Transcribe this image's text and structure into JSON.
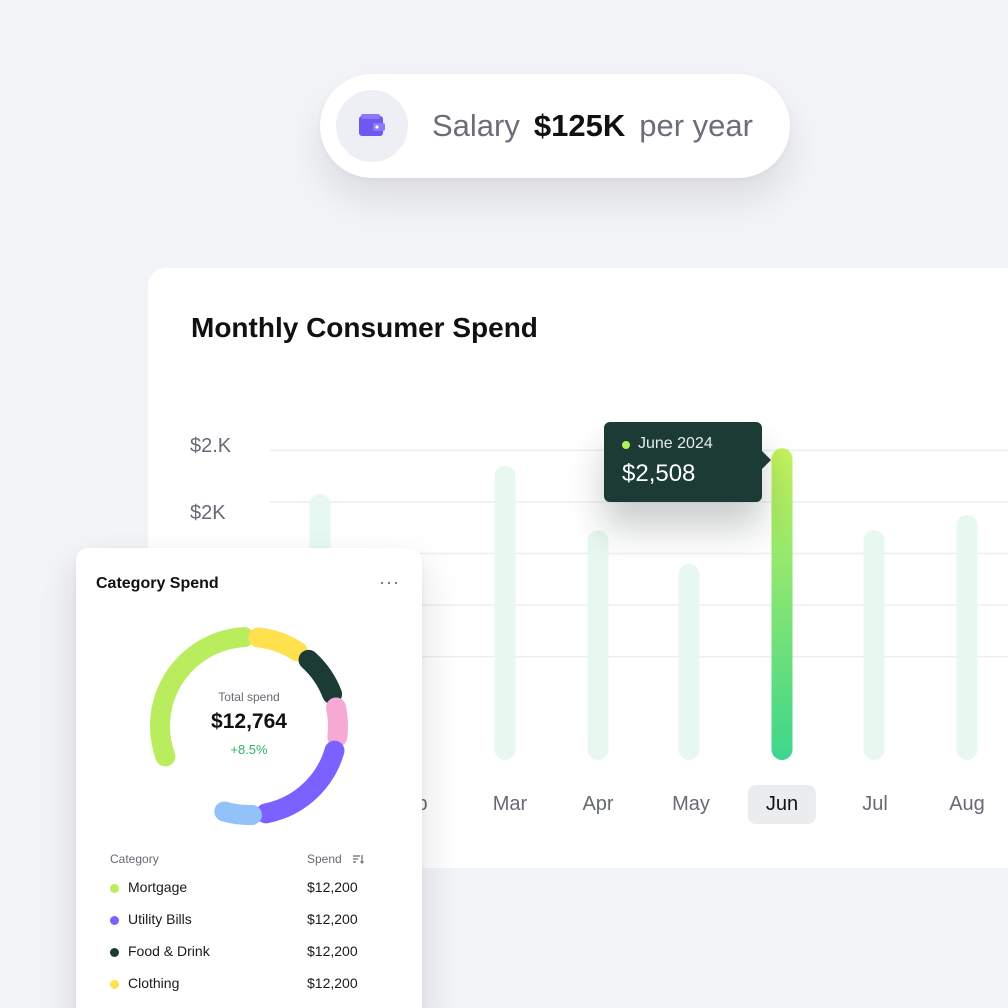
{
  "salary": {
    "label": "Salary",
    "amount": "$125K",
    "suffix": "per year",
    "icon": "wallet-icon",
    "accent": "#7b61ff"
  },
  "chart_card": {
    "title": "Monthly Consumer Spend",
    "y_ticks": [
      "$2.K",
      "$2K"
    ],
    "months": [
      {
        "label": "Feb",
        "visible_text": "b"
      },
      {
        "label": "Mar",
        "visible_text": "Mar"
      },
      {
        "label": "Apr",
        "visible_text": "Apr"
      },
      {
        "label": "May",
        "visible_text": "May"
      },
      {
        "label": "Jun",
        "visible_text": "Jun"
      },
      {
        "label": "Jul",
        "visible_text": "Jul"
      },
      {
        "label": "Aug",
        "visible_text": "Aug"
      }
    ],
    "selected_month": "Jun",
    "tooltip": {
      "date": "June 2024",
      "value": "$2,508"
    },
    "colors": {
      "bar_muted": "#e6f8f0",
      "bar_active_top": "#c5f25c",
      "bar_active_bottom": "#3dd68c",
      "grid": "#eceef1"
    }
  },
  "chart_data": {
    "type": "bar",
    "categories": [
      "Feb",
      "Mar",
      "Apr",
      "May",
      "Jun",
      "Jul",
      "Aug"
    ],
    "values": [
      2330,
      2440,
      2190,
      2060,
      2508,
      2190,
      2250
    ],
    "ylim": [
      1300,
      2540
    ],
    "y_ticks": [
      {
        "label": "$2.K",
        "value": 2500
      },
      {
        "label": "$2K",
        "value": 2300
      }
    ],
    "highlight": "Jun",
    "grid": true
  },
  "category_card": {
    "title": "Category Spend",
    "more_icon": "more-horizontal-icon",
    "total_label": "Total spend",
    "total_value": "$12,764",
    "change": "+8.5%",
    "columns": {
      "category": "Category",
      "spend": "Spend"
    },
    "rows": [
      {
        "name": "Mortgage",
        "value": "$12,200",
        "color": "#b9ed5e"
      },
      {
        "name": "Utility Bills",
        "value": "$12,200",
        "color": "#7b61ff"
      },
      {
        "name": "Food & Drink",
        "value": "$12,200",
        "color": "#1b3b34"
      },
      {
        "name": "Clothing",
        "value": "$12,200",
        "color": "#ffe14d"
      }
    ],
    "donut_segments": [
      {
        "name": "Mortgage",
        "color": "#b9ed5e",
        "share": 0.322
      },
      {
        "name": "Clothing",
        "color": "#ffe14d",
        "share": 0.1
      },
      {
        "name": "Food & Drink",
        "color": "#1b3b34",
        "share": 0.1
      },
      {
        "name": "pink",
        "color": "#f6a9d3",
        "share": 0.078
      },
      {
        "name": "Utility Bills",
        "color": "#7b61ff",
        "share": 0.2
      },
      {
        "name": "light-blue",
        "color": "#93c2f8",
        "share": 0.075
      }
    ]
  }
}
